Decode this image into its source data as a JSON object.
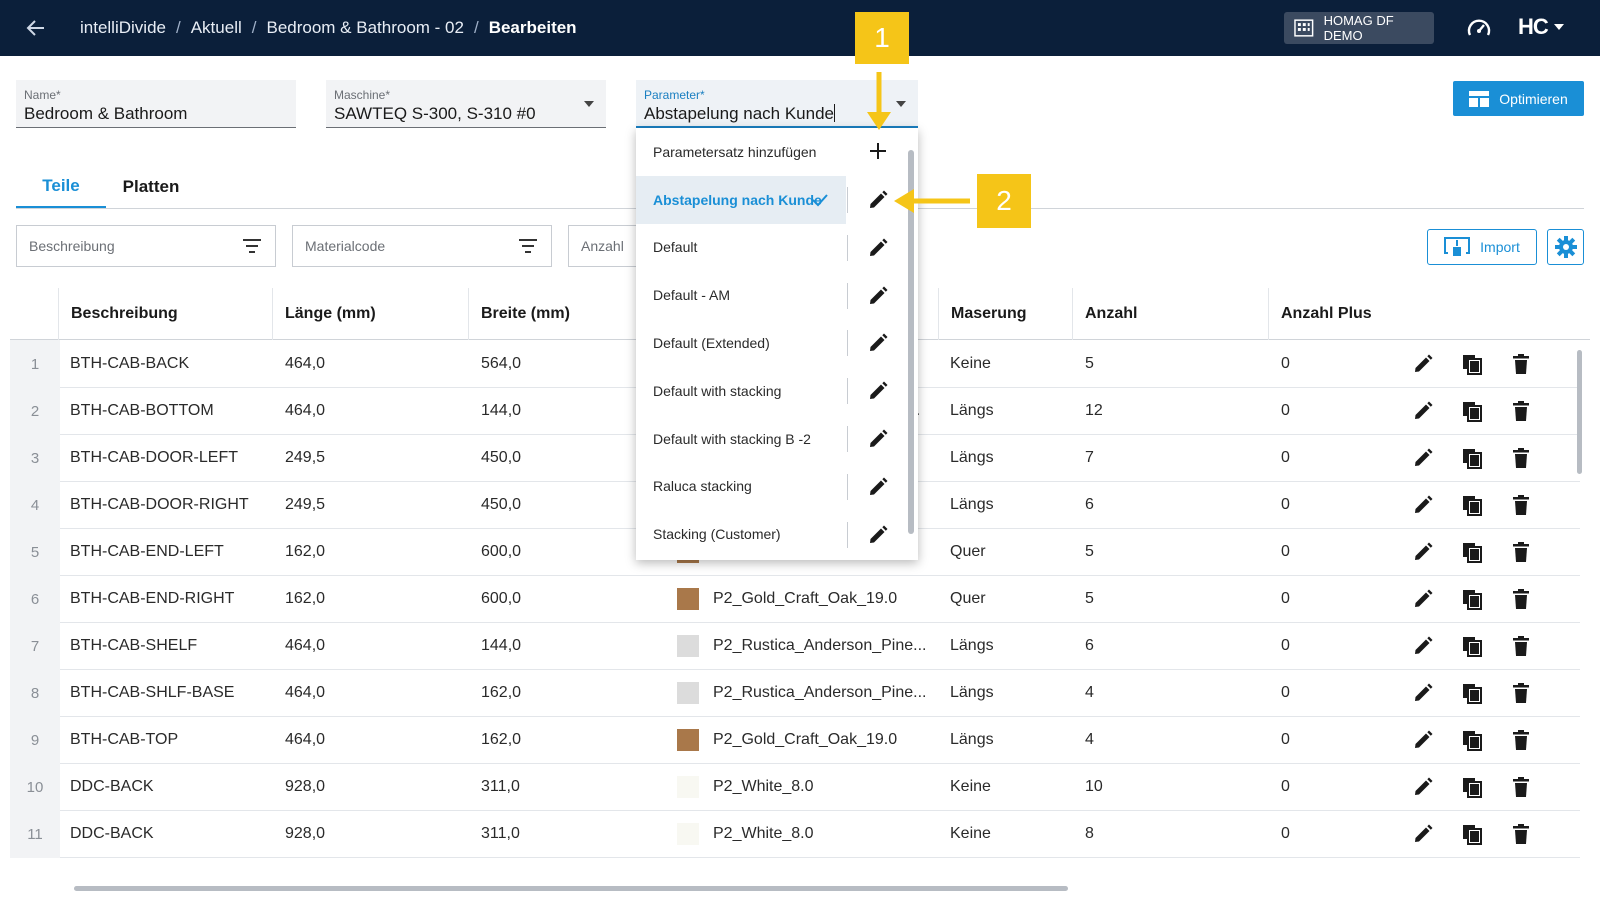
{
  "topbar": {
    "breadcrumbs": [
      "intelliDivide",
      "Aktuell",
      "Bedroom & Bathroom - 02",
      "Bearbeiten"
    ],
    "separator": "/",
    "tenant": "HOMAG DF DEMO",
    "logo": "HC"
  },
  "form": {
    "name": {
      "label": "Name*",
      "value": "Bedroom & Bathroom"
    },
    "machine": {
      "label": "Maschine*",
      "value": "SAWTEQ S-300, S-310 #0"
    },
    "parameter": {
      "label": "Parameter*",
      "value": "Abstapelung nach Kunde"
    }
  },
  "optimize_label": "Optimieren",
  "tabs": [
    "Teile",
    "Platten"
  ],
  "filters": {
    "description": "Beschreibung",
    "material": "Materialcode",
    "count": "Anzahl"
  },
  "import_label": "Import",
  "columns": [
    "Beschreibung",
    "Länge (mm)",
    "Breite (mm)",
    "Maserung",
    "Anzahl",
    "Anzahl Plus"
  ],
  "rows": [
    {
      "n": "1",
      "desc": "BTH-CAB-BACK",
      "len": "464,0",
      "wid": "564,0",
      "mat": "",
      "swatch": "",
      "grain": "Keine",
      "qty": "5",
      "plus": "0"
    },
    {
      "n": "2",
      "desc": "BTH-CAB-BOTTOM",
      "len": "464,0",
      "wid": "144,0",
      "mat": "e...",
      "swatch": "",
      "grain": "Längs",
      "qty": "12",
      "plus": "0"
    },
    {
      "n": "3",
      "desc": "BTH-CAB-DOOR-LEFT",
      "len": "249,5",
      "wid": "450,0",
      "mat": "",
      "swatch": "",
      "grain": "Längs",
      "qty": "7",
      "plus": "0"
    },
    {
      "n": "4",
      "desc": "BTH-CAB-DOOR-RIGHT",
      "len": "249,5",
      "wid": "450,0",
      "mat": "",
      "swatch": "",
      "grain": "Längs",
      "qty": "6",
      "plus": "0"
    },
    {
      "n": "5",
      "desc": "BTH-CAB-END-LEFT",
      "len": "162,0",
      "wid": "600,0",
      "mat": "",
      "swatch": "#a9784a",
      "grain": "Quer",
      "qty": "5",
      "plus": "0"
    },
    {
      "n": "6",
      "desc": "BTH-CAB-END-RIGHT",
      "len": "162,0",
      "wid": "600,0",
      "mat": "P2_Gold_Craft_Oak_19.0",
      "swatch": "#a9784a",
      "grain": "Quer",
      "qty": "5",
      "plus": "0"
    },
    {
      "n": "7",
      "desc": "BTH-CAB-SHELF",
      "len": "464,0",
      "wid": "144,0",
      "mat": "P2_Rustica_Anderson_Pine...",
      "swatch": "#dcdcdc",
      "grain": "Längs",
      "qty": "6",
      "plus": "0"
    },
    {
      "n": "8",
      "desc": "BTH-CAB-SHLF-BASE",
      "len": "464,0",
      "wid": "162,0",
      "mat": "P2_Rustica_Anderson_Pine...",
      "swatch": "#dcdcdc",
      "grain": "Längs",
      "qty": "4",
      "plus": "0"
    },
    {
      "n": "9",
      "desc": "BTH-CAB-TOP",
      "len": "464,0",
      "wid": "162,0",
      "mat": "P2_Gold_Craft_Oak_19.0",
      "swatch": "#a9784a",
      "grain": "Längs",
      "qty": "4",
      "plus": "0"
    },
    {
      "n": "10",
      "desc": "DDC-BACK",
      "len": "928,0",
      "wid": "311,0",
      "mat": "P2_White_8.0",
      "swatch": "#f8f8f2",
      "grain": "Keine",
      "qty": "10",
      "plus": "0"
    },
    {
      "n": "11",
      "desc": "DDC-BACK",
      "len": "928,0",
      "wid": "311,0",
      "mat": "P2_White_8.0",
      "swatch": "#f8f8f2",
      "grain": "Keine",
      "qty": "8",
      "plus": "0"
    }
  ],
  "dropdown": {
    "add_label": "Parametersatz hinzufügen",
    "items": [
      {
        "label": "Abstapelung nach Kunde",
        "selected": true
      },
      {
        "label": "Default",
        "selected": false
      },
      {
        "label": "Default - AM",
        "selected": false
      },
      {
        "label": "Default (Extended)",
        "selected": false
      },
      {
        "label": "Default with stacking",
        "selected": false
      },
      {
        "label": "Default with stacking B -2",
        "selected": false
      },
      {
        "label": "Raluca stacking",
        "selected": false
      },
      {
        "label": "Stacking (Customer)",
        "selected": false
      }
    ]
  },
  "callouts": [
    "1",
    "2"
  ],
  "colors": {
    "topbar": "#0b1f3a",
    "accent": "#1a8fd6",
    "callout": "#f5c518"
  },
  "icons": [
    "back-arrow-icon",
    "building-icon",
    "gauge-icon",
    "chevron-down-icon",
    "optimize-icon",
    "filter-icon",
    "import-icon",
    "gear-icon",
    "edit-icon",
    "copy-icon",
    "delete-icon",
    "check-icon",
    "plus-icon"
  ]
}
